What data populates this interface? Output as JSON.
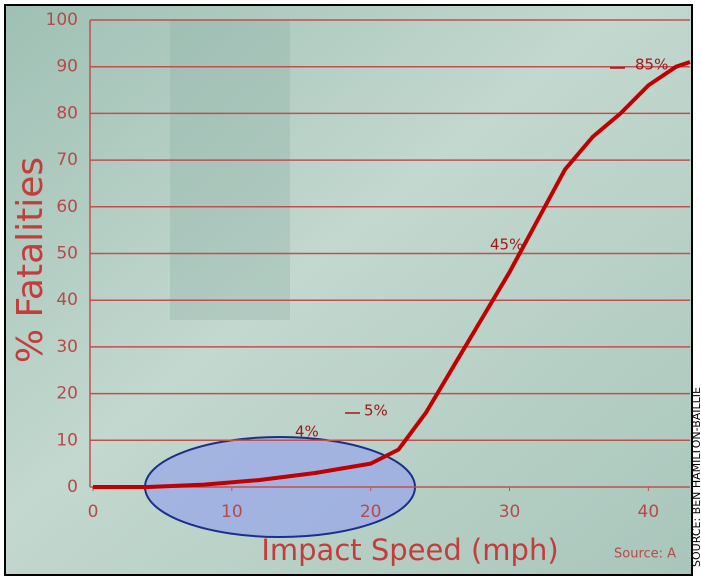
{
  "chart_data": {
    "type": "line",
    "x_label": "Impact Speed (mph)",
    "y_label": "% Fatalities",
    "x": [
      0,
      4,
      8,
      12,
      16,
      20,
      22,
      24,
      26,
      28,
      30,
      32,
      34,
      36,
      38,
      40,
      42,
      43
    ],
    "series": [
      {
        "name": "% Fatalities",
        "color": "#c00000",
        "values": [
          0,
          0,
          0.5,
          1.5,
          3,
          5,
          8,
          16,
          26,
          36,
          46,
          57,
          68,
          75,
          80,
          86,
          90,
          91
        ]
      }
    ],
    "xlim": [
      0,
      43
    ],
    "ylim": [
      0,
      100
    ],
    "xticks": [
      0,
      10,
      20,
      30,
      40
    ],
    "yticks": [
      0,
      10,
      20,
      30,
      40,
      50,
      60,
      70,
      80,
      90,
      100
    ],
    "grid": true,
    "annotations": [
      "85%",
      "45%",
      "5%",
      "4%"
    ],
    "source": "Source: A",
    "credit": "SOURCE: BEN HAMILTON-BAILLIE"
  }
}
